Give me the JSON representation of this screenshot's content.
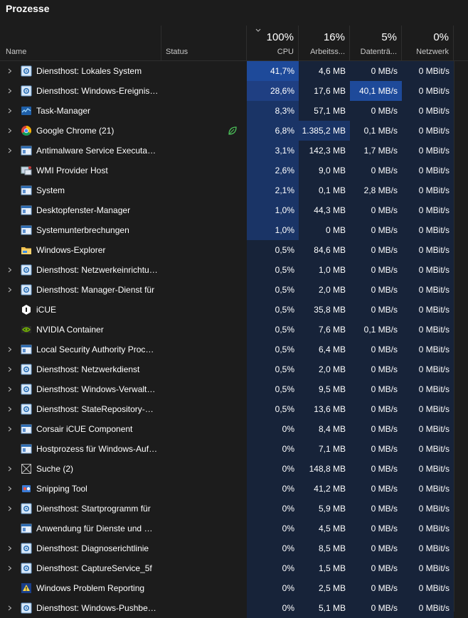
{
  "title": "Prozesse",
  "columns": {
    "name": "Name",
    "status": "Status",
    "cpu": {
      "pct": "100%",
      "label": "CPU"
    },
    "mem": {
      "pct": "16%",
      "label": "Arbeitss..."
    },
    "disk": {
      "pct": "5%",
      "label": "Datenträ..."
    },
    "net": {
      "pct": "0%",
      "label": "Netzwerk"
    }
  },
  "colors": {
    "bg": "#1c1c1c",
    "heat_low": "#172339",
    "heat_mid": "#1a3466",
    "heat_high": "#1f3f82",
    "heat_top": "#1e4a9a"
  },
  "processes": [
    {
      "name": "Diensthost: Lokales System",
      "icon": "service-gear-icon",
      "expand": true,
      "cpu": "41,7%",
      "mem": "4,6 MB",
      "disk": "0 MB/s",
      "net": "0 MBit/s",
      "heat": {
        "cpu": "top",
        "mem": "low",
        "disk": "low",
        "net": "low"
      }
    },
    {
      "name": "Diensthost: Windows-Ereignisprotokoll",
      "icon": "service-gear-icon",
      "expand": true,
      "cpu": "28,6%",
      "mem": "17,6 MB",
      "disk": "40,1 MB/s",
      "net": "0 MBit/s",
      "heat": {
        "cpu": "high",
        "mem": "low",
        "disk": "top",
        "net": "low"
      }
    },
    {
      "name": "Task-Manager",
      "icon": "task-manager-icon",
      "expand": true,
      "cpu": "8,3%",
      "mem": "57,1 MB",
      "disk": "0 MB/s",
      "net": "0 MBit/s",
      "heat": {
        "cpu": "mid",
        "mem": "low",
        "disk": "low",
        "net": "low"
      }
    },
    {
      "name": "Google Chrome (21)",
      "icon": "chrome-icon",
      "expand": true,
      "leaf": true,
      "cpu": "6,8%",
      "mem": "1.385,2 MB",
      "disk": "0,1 MB/s",
      "net": "0 MBit/s",
      "heat": {
        "cpu": "mid",
        "mem": "mid",
        "disk": "low",
        "net": "low"
      }
    },
    {
      "name": "Antimalware Service Executable",
      "icon": "app-window-icon",
      "expand": true,
      "cpu": "3,1%",
      "mem": "142,3 MB",
      "disk": "1,7 MB/s",
      "net": "0 MBit/s",
      "heat": {
        "cpu": "mid",
        "mem": "low",
        "disk": "low",
        "net": "low"
      }
    },
    {
      "name": "WMI Provider Host",
      "icon": "wmi-icon",
      "expand": false,
      "cpu": "2,6%",
      "mem": "9,0 MB",
      "disk": "0 MB/s",
      "net": "0 MBit/s",
      "heat": {
        "cpu": "mid",
        "mem": "low",
        "disk": "low",
        "net": "low"
      }
    },
    {
      "name": "System",
      "icon": "app-window-icon",
      "expand": false,
      "cpu": "2,1%",
      "mem": "0,1 MB",
      "disk": "2,8 MB/s",
      "net": "0 MBit/s",
      "heat": {
        "cpu": "mid",
        "mem": "low",
        "disk": "low",
        "net": "low"
      }
    },
    {
      "name": "Desktopfenster-Manager",
      "icon": "app-window-icon",
      "expand": false,
      "cpu": "1,0%",
      "mem": "44,3 MB",
      "disk": "0 MB/s",
      "net": "0 MBit/s",
      "heat": {
        "cpu": "mid",
        "mem": "low",
        "disk": "low",
        "net": "low"
      }
    },
    {
      "name": "Systemunterbrechungen",
      "icon": "app-window-icon",
      "expand": false,
      "cpu": "1,0%",
      "mem": "0 MB",
      "disk": "0 MB/s",
      "net": "0 MBit/s",
      "heat": {
        "cpu": "mid",
        "mem": "low",
        "disk": "low",
        "net": "low"
      }
    },
    {
      "name": "Windows-Explorer",
      "icon": "folder-icon",
      "expand": false,
      "cpu": "0,5%",
      "mem": "84,6 MB",
      "disk": "0 MB/s",
      "net": "0 MBit/s",
      "heat": {
        "cpu": "low",
        "mem": "low",
        "disk": "low",
        "net": "low"
      }
    },
    {
      "name": "Diensthost: Netzwerkeinrichtungsdienst",
      "icon": "service-gear-icon",
      "expand": true,
      "cpu": "0,5%",
      "mem": "1,0 MB",
      "disk": "0 MB/s",
      "net": "0 MBit/s",
      "heat": {
        "cpu": "low",
        "mem": "low",
        "disk": "low",
        "net": "low"
      }
    },
    {
      "name": "Diensthost: Manager-Dienst für",
      "icon": "service-gear-icon",
      "expand": true,
      "cpu": "0,5%",
      "mem": "2,0 MB",
      "disk": "0 MB/s",
      "net": "0 MBit/s",
      "heat": {
        "cpu": "low",
        "mem": "low",
        "disk": "low",
        "net": "low"
      }
    },
    {
      "name": "iCUE",
      "icon": "icue-icon",
      "expand": false,
      "cpu": "0,5%",
      "mem": "35,8 MB",
      "disk": "0 MB/s",
      "net": "0 MBit/s",
      "heat": {
        "cpu": "low",
        "mem": "low",
        "disk": "low",
        "net": "low"
      }
    },
    {
      "name": "NVIDIA Container",
      "icon": "nvidia-icon",
      "expand": false,
      "cpu": "0,5%",
      "mem": "7,6 MB",
      "disk": "0,1 MB/s",
      "net": "0 MBit/s",
      "heat": {
        "cpu": "low",
        "mem": "low",
        "disk": "low",
        "net": "low"
      }
    },
    {
      "name": "Local Security Authority Process",
      "icon": "app-window-icon",
      "expand": true,
      "cpu": "0,5%",
      "mem": "6,4 MB",
      "disk": "0 MB/s",
      "net": "0 MBit/s",
      "heat": {
        "cpu": "low",
        "mem": "low",
        "disk": "low",
        "net": "low"
      }
    },
    {
      "name": "Diensthost: Netzwerkdienst",
      "icon": "service-gear-icon",
      "expand": true,
      "cpu": "0,5%",
      "mem": "2,0 MB",
      "disk": "0 MB/s",
      "net": "0 MBit/s",
      "heat": {
        "cpu": "low",
        "mem": "low",
        "disk": "low",
        "net": "low"
      }
    },
    {
      "name": "Diensthost: Windows-Verwaltung",
      "icon": "service-gear-icon",
      "expand": true,
      "cpu": "0,5%",
      "mem": "9,5 MB",
      "disk": "0 MB/s",
      "net": "0 MBit/s",
      "heat": {
        "cpu": "low",
        "mem": "low",
        "disk": "low",
        "net": "low"
      }
    },
    {
      "name": "Diensthost: StateRepository-Dienst",
      "icon": "service-gear-icon",
      "expand": true,
      "cpu": "0,5%",
      "mem": "13,6 MB",
      "disk": "0 MB/s",
      "net": "0 MBit/s",
      "heat": {
        "cpu": "low",
        "mem": "low",
        "disk": "low",
        "net": "low"
      }
    },
    {
      "name": "Corsair iCUE Component",
      "icon": "app-window-icon",
      "expand": true,
      "cpu": "0%",
      "mem": "8,4 MB",
      "disk": "0 MB/s",
      "net": "0 MBit/s",
      "heat": {
        "cpu": "low",
        "mem": "low",
        "disk": "low",
        "net": "low"
      }
    },
    {
      "name": "Hostprozess für Windows-Aufgaben",
      "icon": "app-window-icon",
      "expand": false,
      "cpu": "0%",
      "mem": "7,1 MB",
      "disk": "0 MB/s",
      "net": "0 MBit/s",
      "heat": {
        "cpu": "low",
        "mem": "low",
        "disk": "low",
        "net": "low"
      }
    },
    {
      "name": "Suche (2)",
      "icon": "search-app-icon",
      "expand": true,
      "cpu": "0%",
      "mem": "148,8 MB",
      "disk": "0 MB/s",
      "net": "0 MBit/s",
      "heat": {
        "cpu": "low",
        "mem": "low",
        "disk": "low",
        "net": "low"
      }
    },
    {
      "name": "Snipping Tool",
      "icon": "snipping-tool-icon",
      "expand": true,
      "cpu": "0%",
      "mem": "41,2 MB",
      "disk": "0 MB/s",
      "net": "0 MBit/s",
      "heat": {
        "cpu": "low",
        "mem": "low",
        "disk": "low",
        "net": "low"
      }
    },
    {
      "name": "Diensthost: Startprogramm für",
      "icon": "service-gear-icon",
      "expand": true,
      "cpu": "0%",
      "mem": "5,9 MB",
      "disk": "0 MB/s",
      "net": "0 MBit/s",
      "heat": {
        "cpu": "low",
        "mem": "low",
        "disk": "low",
        "net": "low"
      }
    },
    {
      "name": "Anwendung für Dienste und Controller",
      "icon": "app-window-icon",
      "expand": false,
      "cpu": "0%",
      "mem": "4,5 MB",
      "disk": "0 MB/s",
      "net": "0 MBit/s",
      "heat": {
        "cpu": "low",
        "mem": "low",
        "disk": "low",
        "net": "low"
      }
    },
    {
      "name": "Diensthost: Diagnoserichtlinie",
      "icon": "service-gear-icon",
      "expand": true,
      "cpu": "0%",
      "mem": "8,5 MB",
      "disk": "0 MB/s",
      "net": "0 MBit/s",
      "heat": {
        "cpu": "low",
        "mem": "low",
        "disk": "low",
        "net": "low"
      }
    },
    {
      "name": "Diensthost: CaptureService_5f",
      "icon": "service-gear-icon",
      "expand": true,
      "cpu": "0%",
      "mem": "1,5 MB",
      "disk": "0 MB/s",
      "net": "0 MBit/s",
      "heat": {
        "cpu": "low",
        "mem": "low",
        "disk": "low",
        "net": "low"
      }
    },
    {
      "name": "Windows Problem Reporting",
      "icon": "problem-reporting-icon",
      "expand": false,
      "cpu": "0%",
      "mem": "2,5 MB",
      "disk": "0 MB/s",
      "net": "0 MBit/s",
      "heat": {
        "cpu": "low",
        "mem": "low",
        "disk": "low",
        "net": "low"
      }
    },
    {
      "name": "Diensthost: Windows-Pushbenachrichtigungen",
      "icon": "service-gear-icon",
      "expand": true,
      "cpu": "0%",
      "mem": "5,1 MB",
      "disk": "0 MB/s",
      "net": "0 MBit/s",
      "heat": {
        "cpu": "low",
        "mem": "low",
        "disk": "low",
        "net": "low"
      }
    }
  ]
}
